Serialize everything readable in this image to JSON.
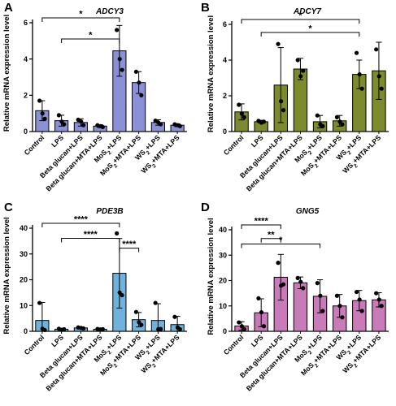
{
  "chart_data": [
    {
      "type": "bar",
      "panel": "A",
      "title": "ADCY3",
      "ylabel": "Relative mRNA expression level",
      "ylim": [
        0,
        6
      ],
      "yticks": [
        0,
        2,
        4,
        6
      ],
      "color": "#8b91d6",
      "categories": [
        "Control",
        "LPS",
        "Beta glucan+LPS",
        "Beta glucan+MTA+LPS",
        "MoS2+LPS",
        "MoS2+MTA+LPS",
        "WS2+LPS",
        "WS2+MTA+LPS"
      ],
      "values": [
        1.15,
        0.6,
        0.5,
        0.3,
        4.45,
        2.7,
        0.5,
        0.35
      ],
      "errors": [
        0.55,
        0.3,
        0.2,
        0.08,
        1.4,
        0.6,
        0.15,
        0.08
      ],
      "points": [
        [
          1.7,
          1.0,
          0.7
        ],
        [
          0.9,
          0.55,
          0.4
        ],
        [
          0.65,
          0.55,
          0.35
        ],
        [
          0.35,
          0.3,
          0.25
        ],
        [
          5.6,
          4.0,
          3.4
        ],
        [
          3.3,
          2.7,
          2.0
        ],
        [
          0.6,
          0.5,
          0.4
        ],
        [
          0.4,
          0.35,
          0.3
        ]
      ],
      "significance": [
        {
          "from": 0,
          "to": 4,
          "label": "*"
        },
        {
          "from": 1,
          "to": 4,
          "label": "*"
        }
      ]
    },
    {
      "type": "bar",
      "panel": "B",
      "title": "ADCY7",
      "ylabel": "Relative mRNA expression level",
      "ylim": [
        0,
        6
      ],
      "yticks": [
        0,
        2,
        4,
        6
      ],
      "color": "#7d8a2e",
      "categories": [
        "Control",
        "LPS",
        "Beta glucan+LPS",
        "Beta glucan+MTA+LPS",
        "MoS2+LPS",
        "MoS2+MTA+LPS",
        "WS2+LPS",
        "WS2+MTA+LPS"
      ],
      "values": [
        1.1,
        0.55,
        2.6,
        3.5,
        0.55,
        0.6,
        3.2,
        3.4
      ],
      "errors": [
        0.45,
        0.08,
        2.1,
        0.6,
        0.35,
        0.3,
        0.8,
        1.6
      ],
      "points": [
        [
          1.5,
          1.0,
          0.8
        ],
        [
          0.6,
          0.5,
          0.55
        ],
        [
          4.9,
          1.7,
          1.2
        ],
        [
          4.0,
          3.1,
          3.4
        ],
        [
          0.9,
          0.4,
          0.3
        ],
        [
          0.8,
          0.55,
          0.4
        ],
        [
          4.4,
          3.2,
          2.4
        ],
        [
          4.6,
          3.1,
          2.4
        ]
      ],
      "significance": [
        {
          "from": 0,
          "to": 6,
          "label": "*"
        },
        {
          "from": 1,
          "to": 6,
          "label": "*"
        }
      ]
    },
    {
      "type": "bar",
      "panel": "C",
      "title": "PDE3B",
      "ylabel": "Relative mRNA expression level",
      "ylim": [
        0,
        40
      ],
      "yticks": [
        0,
        10,
        20,
        30,
        40
      ],
      "color": "#6fb3dd",
      "categories": [
        "Control",
        "LPS",
        "Beta glucan+LPS",
        "Beta glucan+MTA+LPS",
        "MoS2+LPS",
        "MoS2+MTA+LPS",
        "WS2+LPS",
        "WS2+MTA+LPS"
      ],
      "values": [
        4.2,
        0.8,
        1.3,
        0.8,
        22.5,
        4.5,
        4.2,
        2.6
      ],
      "errors": [
        7.0,
        0.3,
        0.3,
        0.2,
        13.5,
        2.8,
        6.5,
        3.2
      ],
      "points": [
        [
          11.0,
          1.0,
          0.5
        ],
        [
          1.0,
          0.6,
          0.8
        ],
        [
          1.5,
          1.3,
          1.1
        ],
        [
          0.9,
          0.7,
          0.8
        ],
        [
          38.0,
          15.0,
          14.0
        ],
        [
          7.5,
          3.5,
          2.5
        ],
        [
          11.0,
          0.8,
          0.9
        ],
        [
          5.6,
          1.5,
          0.8
        ]
      ],
      "significance": [
        {
          "from": 0,
          "to": 4,
          "label": "****"
        },
        {
          "from": 1,
          "to": 4,
          "label": "****"
        },
        {
          "from": 4,
          "to": 5,
          "label": "****"
        }
      ]
    },
    {
      "type": "bar",
      "panel": "D",
      "title": "GNG5",
      "ylabel": "Relative mRNA expression level",
      "ylim": [
        0,
        40
      ],
      "yticks": [
        0,
        10,
        20,
        30,
        40
      ],
      "color": "#c97ab9",
      "categories": [
        "Control",
        "LPS",
        "Beta glucan+LPS",
        "Beta glucan+MTA+LPS",
        "MoS2+LPS",
        "MoS2+MTA+LPS",
        "WS2+LPS",
        "WS2+MTA+LPS"
      ],
      "values": [
        2.1,
        7.3,
        21.3,
        19.1,
        13.8,
        10.0,
        12.1,
        12.4
      ],
      "errors": [
        1.7,
        5.5,
        9.0,
        2.3,
        6.5,
        4.5,
        4.0,
        2.8
      ],
      "points": [
        [
          3.5,
          2.0,
          0.8
        ],
        [
          13.0,
          7.5,
          2.0
        ],
        [
          27.0,
          18.0,
          18.5
        ],
        [
          21.0,
          19.5,
          17.0
        ],
        [
          19.0,
          14.0,
          8.0
        ],
        [
          14.0,
          10.0,
          5.5
        ],
        [
          15.5,
          12.5,
          8.0
        ],
        [
          15.0,
          12.5,
          10.0
        ]
      ],
      "significance": [
        {
          "from": 0,
          "to": 2,
          "label": "****"
        },
        {
          "from": 1,
          "to": 2,
          "label": "**"
        },
        {
          "from": 0,
          "to": 4,
          "label": "*"
        }
      ]
    }
  ]
}
